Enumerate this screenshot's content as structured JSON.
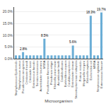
{
  "chart_data": {
    "type": "bar",
    "xlabel": "Microorganism",
    "categories": [
      "Staphylococcus Epidermidis",
      "Staphylococcus aureus",
      "Pseudomonas aeruginosa",
      "Citrobacter freundii",
      "Citrobacter koseri",
      "Enterococcus faecalis",
      "Serratia marcescens",
      "Acinetobacter baumannii",
      "MSSA",
      "Pseudomonas fluorescens",
      "Providencia rettgeri",
      "Klebsiella pneumoniae",
      "Acinetobacter lwoffii",
      "Candida albicans",
      "Burkholderia cepacia",
      "Candida parapsilosis",
      "Enterobacter cloacae",
      "Stenotrophomonas maltophilia",
      "Proteus mirabilis",
      "Morganella morganii",
      "Klebsiella oxytoca",
      "Escherichia coli",
      "MRSA",
      "Streptococcus agalactiae",
      "Enterococcus faecium"
    ],
    "values": [
      1.4,
      1.4,
      2.8,
      1.4,
      1.4,
      1.4,
      1.4,
      1.4,
      8.5,
      1.4,
      1.4,
      1.4,
      1.4,
      1.4,
      1.4,
      1.4,
      5.6,
      1.4,
      1.4,
      1.4,
      1.4,
      18.3,
      1.4,
      1.4,
      19.7
    ],
    "value_labels": [
      null,
      null,
      "2.8%",
      null,
      null,
      null,
      null,
      null,
      "8.5%",
      null,
      null,
      null,
      null,
      null,
      null,
      null,
      "5.6%",
      null,
      null,
      null,
      null,
      "18.3%",
      null,
      null,
      "19.7%"
    ],
    "color": "#6baed6",
    "ylim": [
      0,
      22
    ],
    "yticks": [
      {
        "value": 0,
        "label": "0.0%"
      },
      {
        "value": 5,
        "label": "5.0%"
      },
      {
        "value": 10,
        "label": "10.0%"
      },
      {
        "value": 15,
        "label": "15.0%"
      },
      {
        "value": 20,
        "label": "20.0%"
      }
    ],
    "grid": true
  }
}
